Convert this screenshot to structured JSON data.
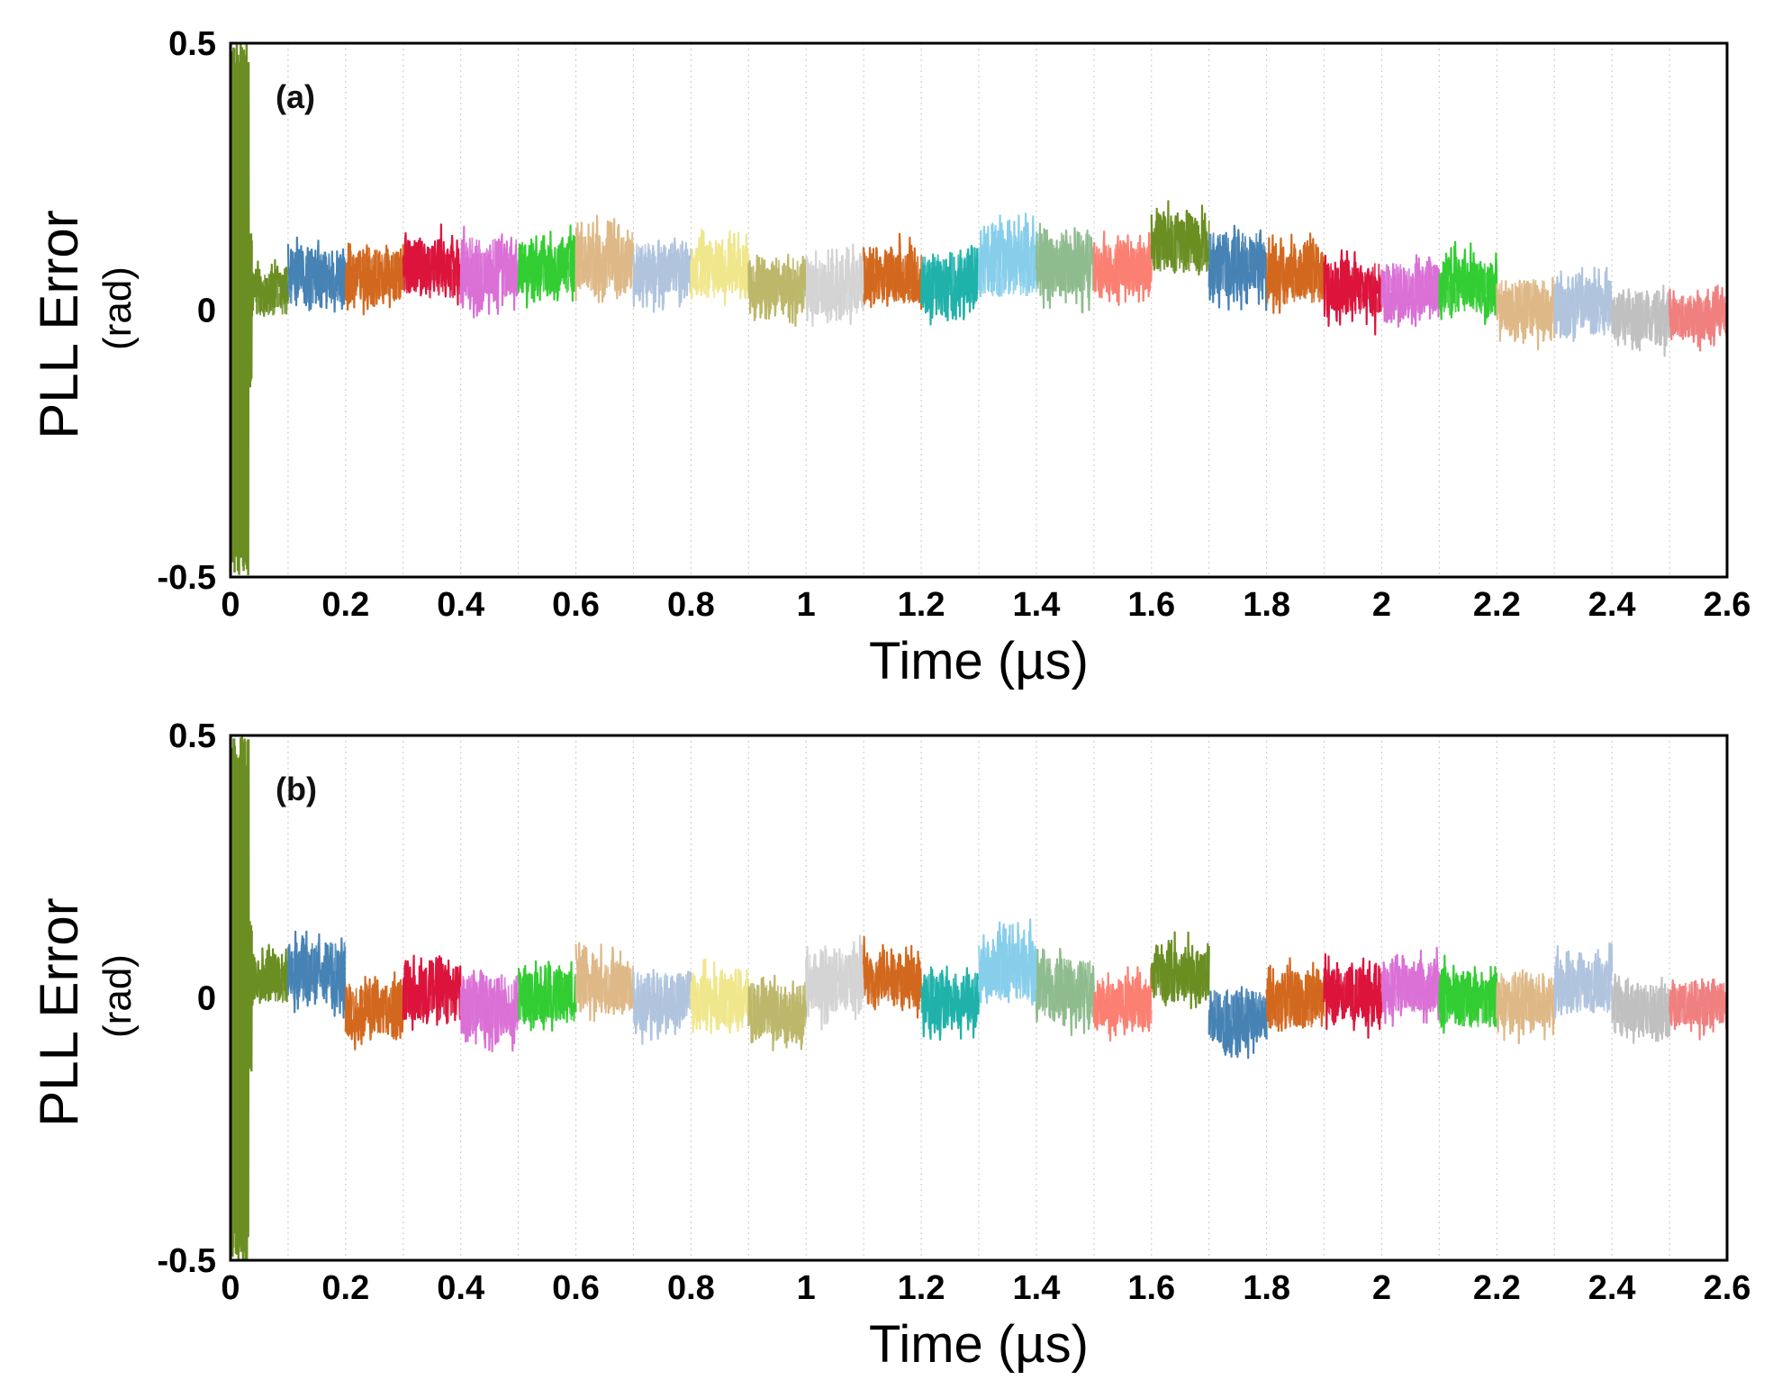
{
  "chart_data": [
    {
      "type": "line",
      "panel_label": "(a)",
      "xlabel": "Time (µs)",
      "ylabel": "PLL Error",
      "ylabel_unit": "(rad)",
      "xlim": [
        0,
        2.6
      ],
      "ylim": [
        -0.5,
        0.5
      ],
      "xticks": [
        0,
        0.2,
        0.4,
        0.6,
        0.8,
        1,
        1.2,
        1.4,
        1.6,
        1.8,
        2,
        2.2,
        2.4,
        2.6
      ],
      "xtick_labels": [
        "0",
        "0.2",
        "0.4",
        "0.6",
        "0.8",
        "1",
        "1.2",
        "1.4",
        "1.6",
        "1.8",
        "2",
        "2.2",
        "2.4",
        "2.6"
      ],
      "yticks": [
        -0.5,
        0,
        0.5
      ],
      "ytick_labels": [
        "-0.5",
        "0",
        "0.5"
      ],
      "grid": "vertical-dotted",
      "segments": [
        {
          "start": 0.0,
          "end": 0.1,
          "mean": 0.03,
          "spread": 0.05,
          "color": "#6b8e23"
        },
        {
          "start": 0.1,
          "end": 0.2,
          "mean": 0.06,
          "spread": 0.06,
          "color": "#4682b4"
        },
        {
          "start": 0.2,
          "end": 0.3,
          "mean": 0.07,
          "spread": 0.06,
          "color": "#d2691e"
        },
        {
          "start": 0.3,
          "end": 0.4,
          "mean": 0.07,
          "spread": 0.06,
          "color": "#dc143c"
        },
        {
          "start": 0.4,
          "end": 0.5,
          "mean": 0.08,
          "spread": 0.07,
          "color": "#da70d6"
        },
        {
          "start": 0.5,
          "end": 0.6,
          "mean": 0.08,
          "spread": 0.06,
          "color": "#32cd32"
        },
        {
          "start": 0.6,
          "end": 0.7,
          "mean": 0.09,
          "spread": 0.07,
          "color": "#deb887"
        },
        {
          "start": 0.7,
          "end": 0.8,
          "mean": 0.08,
          "spread": 0.06,
          "color": "#b0c4de"
        },
        {
          "start": 0.8,
          "end": 0.9,
          "mean": 0.07,
          "spread": 0.06,
          "color": "#f0e68c"
        },
        {
          "start": 0.9,
          "end": 1.0,
          "mean": 0.05,
          "spread": 0.06,
          "color": "#bdb76b"
        },
        {
          "start": 1.0,
          "end": 1.1,
          "mean": 0.04,
          "spread": 0.07,
          "color": "#d3d3d3"
        },
        {
          "start": 1.1,
          "end": 1.2,
          "mean": 0.06,
          "spread": 0.06,
          "color": "#d2691e"
        },
        {
          "start": 1.2,
          "end": 1.3,
          "mean": 0.06,
          "spread": 0.06,
          "color": "#20b2aa"
        },
        {
          "start": 1.3,
          "end": 1.4,
          "mean": 0.08,
          "spread": 0.07,
          "color": "#87ceeb"
        },
        {
          "start": 1.4,
          "end": 1.5,
          "mean": 0.09,
          "spread": 0.07,
          "color": "#8fbc8f"
        },
        {
          "start": 1.5,
          "end": 1.6,
          "mean": 0.08,
          "spread": 0.06,
          "color": "#fa8072"
        },
        {
          "start": 1.6,
          "end": 1.7,
          "mean": 0.12,
          "spread": 0.06,
          "color": "#6b8e23"
        },
        {
          "start": 1.7,
          "end": 1.8,
          "mean": 0.09,
          "spread": 0.07,
          "color": "#4682b4"
        },
        {
          "start": 1.8,
          "end": 1.9,
          "mean": 0.06,
          "spread": 0.06,
          "color": "#d2691e"
        },
        {
          "start": 1.9,
          "end": 2.0,
          "mean": 0.04,
          "spread": 0.06,
          "color": "#dc143c"
        },
        {
          "start": 2.0,
          "end": 2.1,
          "mean": 0.04,
          "spread": 0.06,
          "color": "#da70d6"
        },
        {
          "start": 2.1,
          "end": 2.2,
          "mean": 0.04,
          "spread": 0.06,
          "color": "#32cd32"
        },
        {
          "start": 2.2,
          "end": 2.3,
          "mean": 0.01,
          "spread": 0.06,
          "color": "#deb887"
        },
        {
          "start": 2.3,
          "end": 2.4,
          "mean": 0.0,
          "spread": 0.06,
          "color": "#b0c4de"
        },
        {
          "start": 2.4,
          "end": 2.5,
          "mean": -0.01,
          "spread": 0.06,
          "color": "#c0c0c0"
        },
        {
          "start": 2.5,
          "end": 2.6,
          "mean": -0.01,
          "spread": 0.05,
          "color": "#f08080"
        }
      ],
      "initial_transient": {
        "start": 0.0,
        "end": 0.04,
        "min": -0.5,
        "max": 0.5,
        "color": "#6b8e23"
      }
    },
    {
      "type": "line",
      "panel_label": "(b)",
      "xlabel": "Time (µs)",
      "ylabel": "PLL Error",
      "ylabel_unit": "(rad)",
      "xlim": [
        0,
        2.6
      ],
      "ylim": [
        -0.5,
        0.5
      ],
      "xticks": [
        0,
        0.2,
        0.4,
        0.6,
        0.8,
        1,
        1.2,
        1.4,
        1.6,
        1.8,
        2,
        2.2,
        2.4,
        2.6
      ],
      "xtick_labels": [
        "0",
        "0.2",
        "0.4",
        "0.6",
        "0.8",
        "1",
        "1.2",
        "1.4",
        "1.6",
        "1.8",
        "2",
        "2.2",
        "2.4",
        "2.6"
      ],
      "yticks": [
        -0.5,
        0,
        0.5
      ],
      "ytick_labels": [
        "-0.5",
        "0",
        "0.5"
      ],
      "grid": "vertical-dotted",
      "segments": [
        {
          "start": 0.0,
          "end": 0.1,
          "mean": 0.03,
          "spread": 0.05,
          "color": "#6b8e23"
        },
        {
          "start": 0.1,
          "end": 0.2,
          "mean": 0.05,
          "spread": 0.07,
          "color": "#4682b4"
        },
        {
          "start": 0.2,
          "end": 0.3,
          "mean": -0.02,
          "spread": 0.06,
          "color": "#d2691e"
        },
        {
          "start": 0.3,
          "end": 0.4,
          "mean": 0.0,
          "spread": 0.06,
          "color": "#dc143c"
        },
        {
          "start": 0.4,
          "end": 0.5,
          "mean": -0.01,
          "spread": 0.07,
          "color": "#da70d6"
        },
        {
          "start": 0.5,
          "end": 0.6,
          "mean": 0.0,
          "spread": 0.06,
          "color": "#32cd32"
        },
        {
          "start": 0.6,
          "end": 0.7,
          "mean": 0.02,
          "spread": 0.06,
          "color": "#deb887"
        },
        {
          "start": 0.7,
          "end": 0.8,
          "mean": 0.0,
          "spread": 0.06,
          "color": "#b0c4de"
        },
        {
          "start": 0.8,
          "end": 0.9,
          "mean": -0.01,
          "spread": 0.06,
          "color": "#f0e68c"
        },
        {
          "start": 0.9,
          "end": 1.0,
          "mean": -0.02,
          "spread": 0.06,
          "color": "#bdb76b"
        },
        {
          "start": 1.0,
          "end": 1.1,
          "mean": 0.03,
          "spread": 0.07,
          "color": "#d3d3d3"
        },
        {
          "start": 1.1,
          "end": 1.2,
          "mean": 0.03,
          "spread": 0.06,
          "color": "#d2691e"
        },
        {
          "start": 1.2,
          "end": 1.3,
          "mean": 0.0,
          "spread": 0.06,
          "color": "#20b2aa"
        },
        {
          "start": 1.3,
          "end": 1.4,
          "mean": 0.05,
          "spread": 0.07,
          "color": "#87ceeb"
        },
        {
          "start": 1.4,
          "end": 1.5,
          "mean": 0.02,
          "spread": 0.07,
          "color": "#8fbc8f"
        },
        {
          "start": 1.5,
          "end": 1.6,
          "mean": -0.01,
          "spread": 0.06,
          "color": "#fa8072"
        },
        {
          "start": 1.6,
          "end": 1.7,
          "mean": 0.04,
          "spread": 0.06,
          "color": "#6b8e23"
        },
        {
          "start": 1.7,
          "end": 1.8,
          "mean": -0.03,
          "spread": 0.06,
          "color": "#4682b4"
        },
        {
          "start": 1.8,
          "end": 1.9,
          "mean": -0.01,
          "spread": 0.06,
          "color": "#d2691e"
        },
        {
          "start": 1.9,
          "end": 2.0,
          "mean": 0.01,
          "spread": 0.06,
          "color": "#dc143c"
        },
        {
          "start": 2.0,
          "end": 2.1,
          "mean": 0.02,
          "spread": 0.06,
          "color": "#da70d6"
        },
        {
          "start": 2.1,
          "end": 2.2,
          "mean": -0.01,
          "spread": 0.06,
          "color": "#32cd32"
        },
        {
          "start": 2.2,
          "end": 2.3,
          "mean": 0.0,
          "spread": 0.06,
          "color": "#deb887"
        },
        {
          "start": 2.3,
          "end": 2.4,
          "mean": 0.02,
          "spread": 0.06,
          "color": "#b0c4de"
        },
        {
          "start": 2.4,
          "end": 2.5,
          "mean": -0.02,
          "spread": 0.06,
          "color": "#c0c0c0"
        },
        {
          "start": 2.5,
          "end": 2.6,
          "mean": -0.01,
          "spread": 0.05,
          "color": "#f08080"
        }
      ],
      "initial_transient": {
        "start": 0.0,
        "end": 0.04,
        "min": -0.5,
        "max": 0.5,
        "color": "#6b8e23"
      }
    }
  ]
}
